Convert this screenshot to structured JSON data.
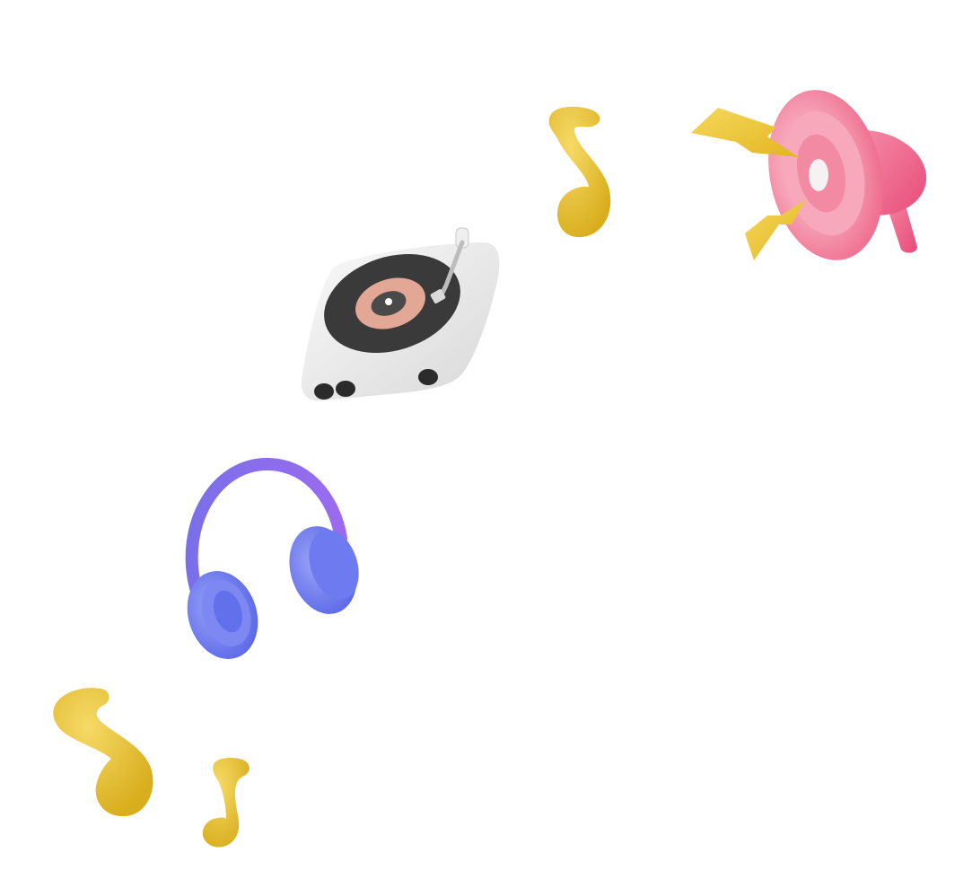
{
  "scene": {
    "background": "#ffffff",
    "objects": [
      {
        "id": "note-top",
        "icon": "music-note-icon",
        "color": "#E8C43A"
      },
      {
        "id": "megaphone",
        "icon": "megaphone-icon",
        "color": "#F27C9A",
        "accent": "#E8C43A"
      },
      {
        "id": "turntable",
        "icon": "turntable-icon",
        "color": "#EDEDED",
        "accent": "#E3A796"
      },
      {
        "id": "headphones",
        "icon": "headphones-icon",
        "color": "#6F7AF0",
        "accent": "#8A63E8"
      },
      {
        "id": "note-left",
        "icon": "music-note-icon",
        "color": "#E8C43A"
      },
      {
        "id": "note-small",
        "icon": "music-note-icon",
        "color": "#E8C43A"
      }
    ]
  }
}
